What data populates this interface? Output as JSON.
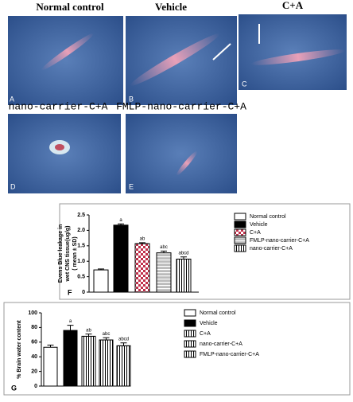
{
  "panels": [
    {
      "letter": "A",
      "title": "Normal control"
    },
    {
      "letter": "B",
      "title": "Vehicle"
    },
    {
      "letter": "C",
      "title": "C+A"
    },
    {
      "letter": "D",
      "title": "nano-carrier-C+A"
    },
    {
      "letter": "E",
      "title": "FMLP-nano-carrier-C+A"
    }
  ],
  "chart_data": [
    {
      "type": "bar",
      "panel": "F",
      "ylabel": [
        "Evens Blue leakage in",
        "wet CNS tissue(ug/g)",
        "( mean ± SD)"
      ],
      "ylim": [
        0,
        2.5
      ],
      "yticks": [
        0,
        0.5,
        {
          "value": 1,
          "label": "1.0"
        },
        1.5,
        {
          "value": 2,
          "label": "2.0"
        },
        2.5
      ],
      "series": [
        {
          "name": "Normal control",
          "color": "#ffffff",
          "pattern": "none",
          "values": [
            0.72
          ],
          "errors": [
            0.03
          ],
          "annotations": [
            null
          ]
        },
        {
          "name": "Vehicle",
          "color": "#000000",
          "pattern": "none",
          "values": [
            2.17
          ],
          "errors": [
            0.04
          ],
          "annotations": [
            "a"
          ]
        },
        {
          "name": "C+A",
          "color": "#c0304a",
          "pattern": "checker",
          "values": [
            1.57
          ],
          "errors": [
            0.03
          ],
          "annotations": [
            "ab"
          ]
        },
        {
          "name": "FMLP-nano-carrier-C+A",
          "color": "#bbbbbb",
          "pattern": "hlines",
          "values": [
            1.27
          ],
          "errors": [
            0.06
          ],
          "annotations": [
            "abc"
          ]
        },
        {
          "name": "nano-carrier-C+A",
          "color": "#ffffff",
          "pattern": "vlines",
          "values": [
            1.07
          ],
          "errors": [
            0.07
          ],
          "annotations": [
            "abcd"
          ]
        }
      ]
    },
    {
      "type": "bar",
      "panel": "G",
      "ylabel": [
        "% Brain water content"
      ],
      "ylim": [
        0,
        100
      ],
      "yticks": [
        0,
        20,
        40,
        60,
        80,
        100
      ],
      "series": [
        {
          "name": "Normal control",
          "color": "#ffffff",
          "pattern": "none",
          "values": [
            53
          ],
          "errors": [
            3
          ],
          "annotations": [
            null
          ]
        },
        {
          "name": "Vehicle",
          "color": "#000000",
          "pattern": "none",
          "values": [
            76
          ],
          "errors": [
            7
          ],
          "annotations": [
            "a"
          ]
        },
        {
          "name": "C+A",
          "color": "#ffffff",
          "pattern": "vlines",
          "values": [
            68
          ],
          "errors": [
            3
          ],
          "annotations": [
            "ab"
          ]
        },
        {
          "name": "nano-carrier-C+A",
          "color": "#ffffff",
          "pattern": "vlines",
          "values": [
            63
          ],
          "errors": [
            3
          ],
          "annotations": [
            "abc"
          ]
        },
        {
          "name": "FMLP-nano-carrier-C+A",
          "color": "#ffffff",
          "pattern": "vlines",
          "values": [
            55
          ],
          "errors": [
            4
          ],
          "annotations": [
            "abcd"
          ]
        }
      ]
    }
  ]
}
